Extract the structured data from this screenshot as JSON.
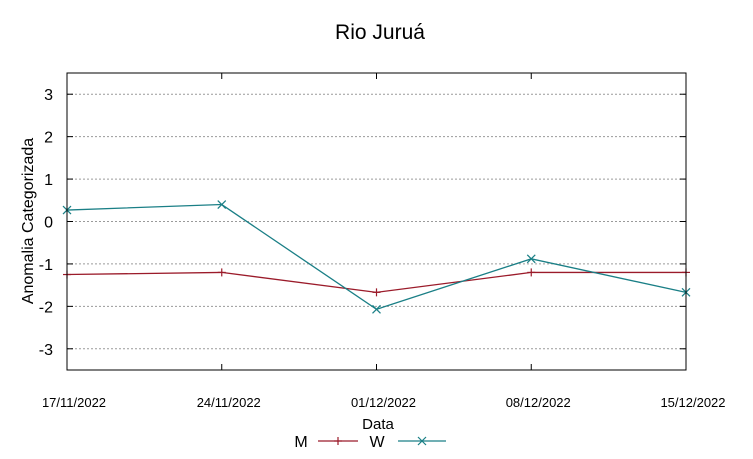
{
  "chart_data": {
    "type": "line",
    "title": "Rio Juruá",
    "xlabel": "Data",
    "ylabel": "Anomalia Categorizada",
    "categories": [
      "17/11/2022",
      "24/11/2022",
      "01/12/2022",
      "08/12/2022",
      "15/12/2022"
    ],
    "yticks": [
      "3",
      "2",
      "1",
      "0",
      "-1",
      "-2",
      "-3"
    ],
    "ylim": [
      -3.5,
      3.5
    ],
    "grid": "horizontal dashed",
    "legend_position": "bottom-center",
    "series": [
      {
        "name": "M",
        "color": "#9b1b2a",
        "marker": "plus",
        "values": [
          -1.25,
          -1.2,
          -1.67,
          -1.2,
          -1.2
        ]
      },
      {
        "name": "W",
        "color": "#1a7f86",
        "marker": "x",
        "values": [
          0.27,
          0.4,
          -2.07,
          -0.88,
          -1.67
        ]
      }
    ]
  }
}
